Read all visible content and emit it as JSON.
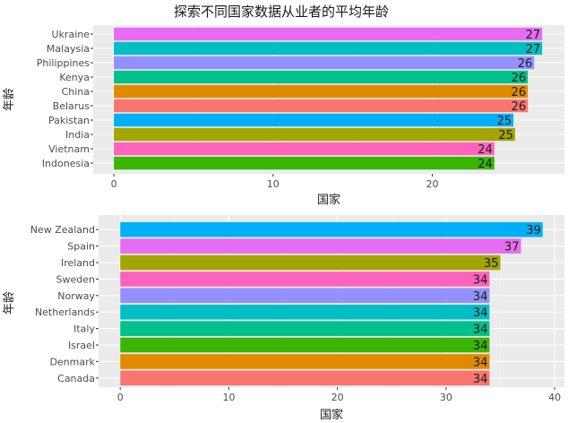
{
  "title": "探索不同国家数据从业者的平均年龄",
  "colors": {
    "panel_background": "#ebebeb",
    "grid": "#ffffff",
    "text": "#1a1a1a",
    "tick_text": "#4d4d4d"
  },
  "chart_data": [
    {
      "type": "bar",
      "orientation": "horizontal",
      "xlabel": "国家",
      "ylabel": "年龄",
      "xlim": [
        -1.3,
        28.3
      ],
      "xticks": [
        0,
        10,
        20
      ],
      "grid": true,
      "legend": "none",
      "categories": [
        "Ukraine",
        "Malaysia",
        "Philippines",
        "Kenya",
        "China",
        "Belarus",
        "Pakistan",
        "India",
        "Vietnam",
        "Indonesia"
      ],
      "values": [
        26.9,
        26.9,
        26.4,
        26.0,
        26.0,
        26.0,
        25.1,
        25.2,
        23.9,
        23.9
      ],
      "labels": [
        "27",
        "27",
        "26",
        "26",
        "26",
        "26",
        "25",
        "25",
        "24",
        "24"
      ],
      "colors": [
        "#e76bf3",
        "#00bfc4",
        "#9590ff",
        "#00c08b",
        "#e18a00",
        "#f8766d",
        "#00b0f6",
        "#a3a500",
        "#ff62bc",
        "#39b600"
      ]
    },
    {
      "type": "bar",
      "orientation": "horizontal",
      "xlabel": "国家",
      "ylabel": "年龄",
      "xlim": [
        -2.0,
        40.9
      ],
      "xticks": [
        0,
        10,
        20,
        30,
        40
      ],
      "grid": true,
      "legend": "none",
      "categories": [
        "New Zealand",
        "Spain",
        "Ireland",
        "Sweden",
        "Norway",
        "Netherlands",
        "Italy",
        "Israel",
        "Denmark",
        "Canada"
      ],
      "values": [
        38.9,
        36.9,
        35.0,
        34.0,
        34.0,
        34.0,
        34.0,
        34.0,
        34.0,
        34.0
      ],
      "labels": [
        "39",
        "37",
        "35",
        "34",
        "34",
        "34",
        "34",
        "34",
        "34",
        "34"
      ],
      "colors": [
        "#00b0f6",
        "#e76bf3",
        "#a3a500",
        "#ff62bc",
        "#9590ff",
        "#00bfc4",
        "#00c08b",
        "#39b600",
        "#e18a00",
        "#f8766d"
      ]
    }
  ]
}
